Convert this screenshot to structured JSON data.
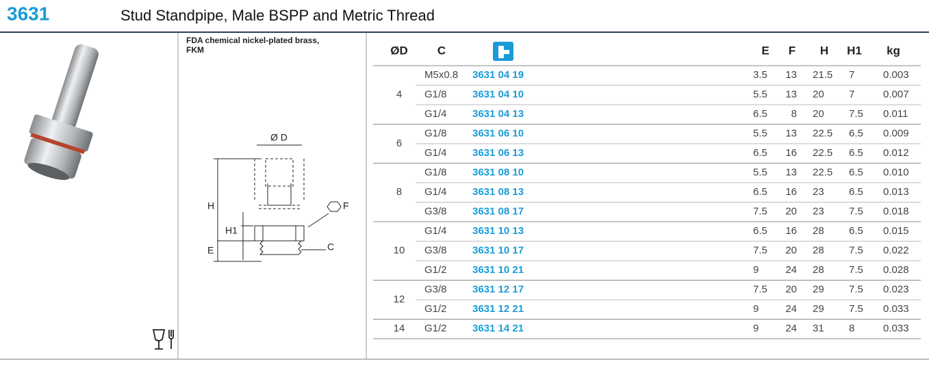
{
  "header": {
    "code": "3631",
    "title": "Stud Standpipe, Male BSPP and Metric Thread"
  },
  "material": [
    "FDA chemical nickel-plated brass,",
    "FKM"
  ],
  "drawing_labels": {
    "diameter": "Ø D",
    "h": "H",
    "h1": "H1",
    "e": "E",
    "f": "F",
    "c": "C"
  },
  "table": {
    "columns": {
      "d": "ØD",
      "c": "C",
      "e": "E",
      "f": "F",
      "h": "H",
      "h1": "H1",
      "kg": "kg"
    },
    "groups": [
      {
        "d": "4",
        "rows": [
          [
            "M5x0.8",
            "3631 04 19",
            "3.5",
            "13",
            "21.5",
            "7",
            "0.003"
          ],
          [
            "G1/8",
            "3631 04 10",
            "5.5",
            "13",
            "20",
            "7",
            "0.007"
          ],
          [
            "G1/4",
            "3631 04 13",
            "6.5",
            "8",
            "20",
            "7.5",
            "0.011"
          ]
        ]
      },
      {
        "d": "6",
        "rows": [
          [
            "G1/8",
            "3631 06 10",
            "5.5",
            "13",
            "22.5",
            "6.5",
            "0.009"
          ],
          [
            "G1/4",
            "3631 06 13",
            "6.5",
            "16",
            "22.5",
            "6.5",
            "0.012"
          ]
        ]
      },
      {
        "d": "8",
        "rows": [
          [
            "G1/8",
            "3631 08 10",
            "5.5",
            "13",
            "22.5",
            "6.5",
            "0.010"
          ],
          [
            "G1/4",
            "3631 08 13",
            "6.5",
            "16",
            "23",
            "6.5",
            "0.013"
          ],
          [
            "G3/8",
            "3631 08 17",
            "7.5",
            "20",
            "23",
            "7.5",
            "0.018"
          ]
        ]
      },
      {
        "d": "10",
        "rows": [
          [
            "G1/4",
            "3631 10 13",
            "6.5",
            "16",
            "28",
            "6.5",
            "0.015"
          ],
          [
            "G3/8",
            "3631 10 17",
            "7.5",
            "20",
            "28",
            "7.5",
            "0.022"
          ],
          [
            "G1/2",
            "3631 10 21",
            "9",
            "24",
            "28",
            "7.5",
            "0.028"
          ]
        ]
      },
      {
        "d": "12",
        "rows": [
          [
            "G3/8",
            "3631 12 17",
            "7.5",
            "20",
            "29",
            "7.5",
            "0.023"
          ],
          [
            "G1/2",
            "3631 12 21",
            "9",
            "24",
            "29",
            "7.5",
            "0.033"
          ]
        ]
      },
      {
        "d": "14",
        "rows": [
          [
            "G1/2",
            "3631 14 21",
            "9",
            "24",
            "31",
            "8",
            "0.033"
          ]
        ]
      }
    ]
  }
}
